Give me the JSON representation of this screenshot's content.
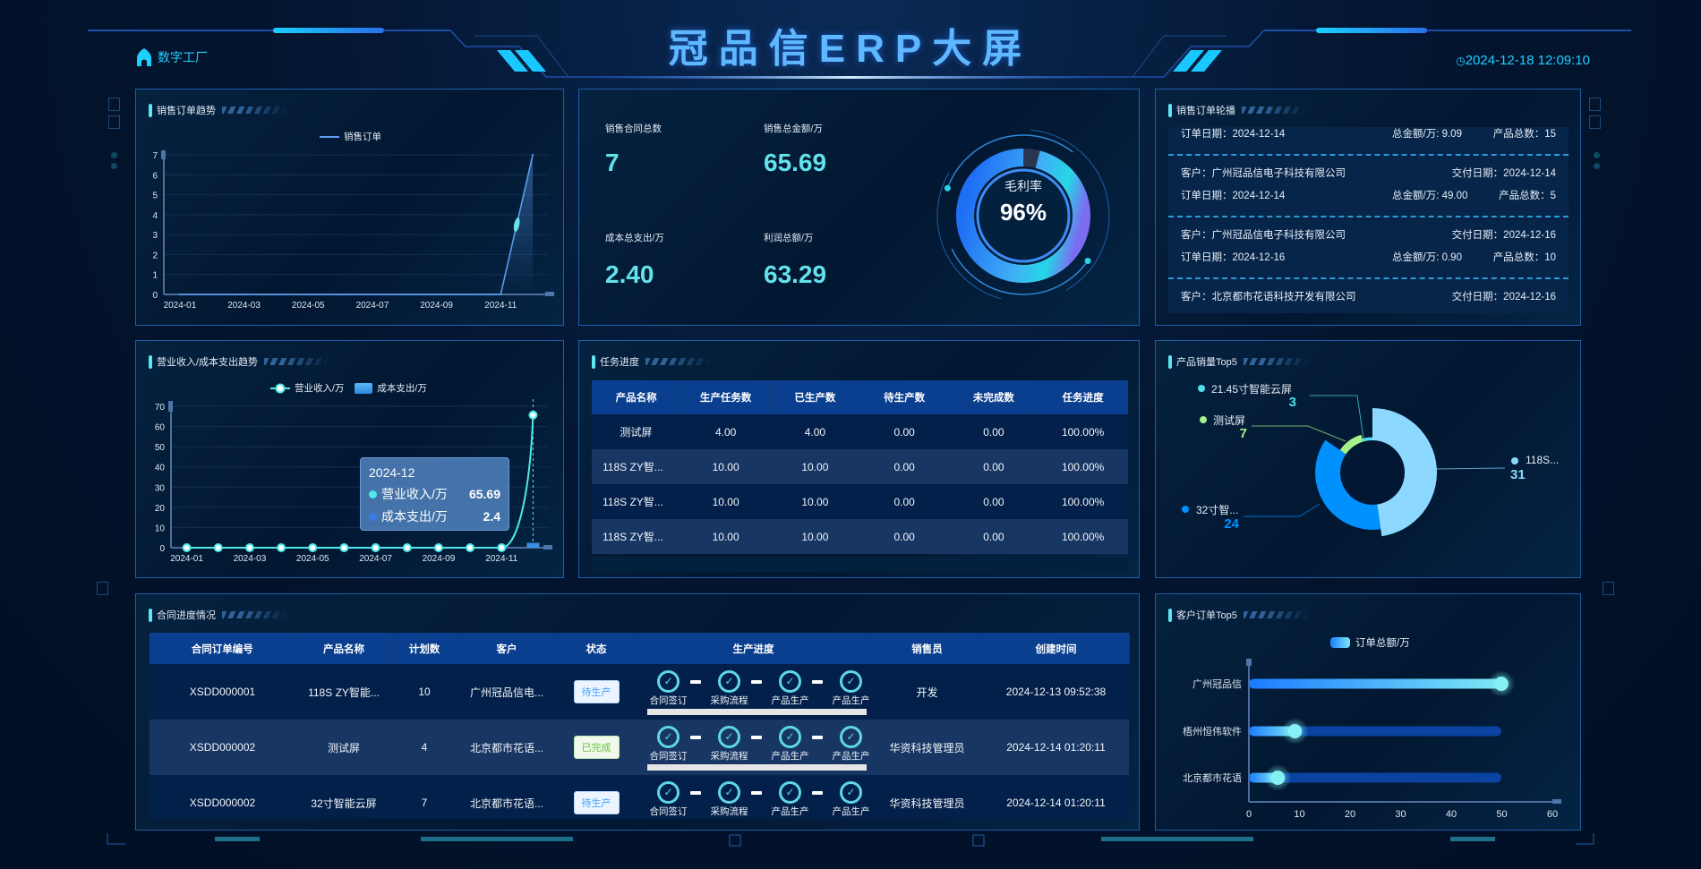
{
  "header": {
    "title": "冠品信ERP大屏",
    "home_label": "数字工厂",
    "home_icon": "home-icon",
    "clock_icon": "◷",
    "datetime": "2024-12-18 12:09:10"
  },
  "colors": {
    "accent": "#5ee6f0",
    "kpi": "#63e2ec",
    "panel_border": "#1d5ea8",
    "table_header": "#0a3f8f"
  },
  "kpis": [
    {
      "label": "销售合同总数",
      "value": "7"
    },
    {
      "label": "销售总金额/万",
      "value": "65.69"
    },
    {
      "label": "成本总支出/万",
      "value": "2.40"
    },
    {
      "label": "利润总额/万",
      "value": "63.29"
    }
  ],
  "gauge": {
    "label": "毛利率",
    "value": "96%",
    "percent": 96
  },
  "order_list": {
    "title": "销售订单轮播",
    "items": [
      {
        "order_date": "订单日期：2024-12-14",
        "amount": "总金额/万: 9.09",
        "count": "产品总数：15"
      },
      {
        "customer": "客户：广州冠品信电子科技有限公司",
        "delivery": "交付日期：2024-12-14",
        "order_date": "订单日期：2024-12-14",
        "amount": "总金额/万: 49.00",
        "count": "产品总数：5"
      },
      {
        "customer": "客户：广州冠品信电子科技有限公司",
        "delivery": "交付日期：2024-12-16",
        "order_date": "订单日期：2024-12-16",
        "amount": "总金额/万: 0.90",
        "count": "产品总数：10"
      },
      {
        "customer": "客户：北京都市花语科技开发有限公司",
        "delivery": "交付日期：2024-12-16"
      }
    ]
  },
  "task_table": {
    "title": "任务进度",
    "columns": [
      "产品名称",
      "生产任务数",
      "已生产数",
      "待生产数",
      "未完成数",
      "任务进度"
    ],
    "rows": [
      [
        "测试屏",
        "4.00",
        "4.00",
        "0.00",
        "0.00",
        "100.00%"
      ],
      [
        "118S ZY智...",
        "10.00",
        "10.00",
        "0.00",
        "0.00",
        "100.00%"
      ],
      [
        "118S ZY智...",
        "10.00",
        "10.00",
        "0.00",
        "0.00",
        "100.00%"
      ],
      [
        "118S ZY智...",
        "10.00",
        "10.00",
        "0.00",
        "0.00",
        "100.00%"
      ]
    ]
  },
  "contract_table": {
    "title": "合同进度情况",
    "columns": [
      "合同订单编号",
      "产品名称",
      "计划数",
      "客户",
      "状态",
      "生产进度",
      "销售员",
      "创建时间"
    ],
    "steps": [
      "合同签订",
      "采购流程",
      "产品生产",
      "产品生产"
    ],
    "rows": [
      {
        "id": "XSDD000001",
        "product": "118S ZY智能...",
        "plan": "10",
        "customer": "广州冠品信电...",
        "status": "待生产",
        "status_type": "pending",
        "progress": 100,
        "seller": "开发",
        "created": "2024-12-13 09:52:38"
      },
      {
        "id": "XSDD000002",
        "product": "测试屏",
        "plan": "4",
        "customer": "北京都市花语...",
        "status": "已完成",
        "status_type": "done",
        "progress": 100,
        "seller": "华资科技管理员",
        "created": "2024-12-14 01:20:11"
      },
      {
        "id": "XSDD000002",
        "product": "32寸智能云屏",
        "plan": "7",
        "customer": "北京都市花语...",
        "status": "待生产",
        "status_type": "pending",
        "progress": 100,
        "seller": "华资科技管理员",
        "created": "2024-12-14 01:20:11"
      }
    ]
  },
  "chart_data": [
    {
      "type": "line",
      "title": "销售订单趋势",
      "legend": [
        "销售订单"
      ],
      "categories": [
        "2024-01",
        "2024-02",
        "2024-03",
        "2024-04",
        "2024-05",
        "2024-06",
        "2024-07",
        "2024-08",
        "2024-09",
        "2024-10",
        "2024-11",
        "2024-12"
      ],
      "x_tick_labels": [
        "2024-01",
        "",
        "2024-03",
        "",
        "2024-05",
        "",
        "2024-07",
        "",
        "2024-09",
        "",
        "2024-11",
        ""
      ],
      "values": [
        0,
        0,
        0,
        0,
        0,
        0,
        0,
        0,
        0,
        0,
        0,
        7
      ],
      "yticks": [
        "0",
        "1",
        "2",
        "3",
        "4",
        "5",
        "6",
        "7"
      ],
      "ylim": [
        0,
        7
      ],
      "color": "#5b9cf0",
      "grid": true
    },
    {
      "type": "line+bar",
      "title": "营业收入/成本支出趋势",
      "categories": [
        "2024-01",
        "2024-02",
        "2024-03",
        "2024-04",
        "2024-05",
        "2024-06",
        "2024-07",
        "2024-08",
        "2024-09",
        "2024-10",
        "2024-11",
        "2024-12"
      ],
      "x_tick_labels": [
        "2024-01",
        "",
        "2024-03",
        "",
        "2024-05",
        "",
        "2024-07",
        "",
        "2024-09",
        "",
        "2024-11",
        ""
      ],
      "series": [
        {
          "name": "营业收入/万",
          "type": "line",
          "color": "#4ee8e8",
          "values": [
            0,
            0,
            0,
            0,
            0,
            0,
            0,
            0,
            0,
            0,
            0,
            65.69
          ]
        },
        {
          "name": "成本支出/万",
          "type": "bar",
          "color": "#3a8ee6",
          "values": [
            0,
            0,
            0,
            0,
            0,
            0,
            0,
            0,
            0,
            0,
            0,
            2.4
          ]
        }
      ],
      "yticks": [
        "0",
        "10",
        "20",
        "30",
        "40",
        "50",
        "60",
        "70"
      ],
      "ylim": [
        0,
        70
      ],
      "grid": true,
      "tooltip": {
        "category": "2024-12",
        "rows": [
          {
            "name": "营业收入/万",
            "value": "65.69",
            "color": "#4ee8e8"
          },
          {
            "name": "成本支出/万",
            "value": "2.4",
            "color": "#3a7ee6"
          }
        ]
      }
    },
    {
      "type": "pie",
      "title": "产品销量Top5",
      "labels": [
        "118S...",
        "32寸智...",
        "测试屏",
        "21.45寸智能云屏"
      ],
      "values": [
        31,
        24,
        7,
        3
      ],
      "value_labels": [
        "31",
        "24",
        "7",
        "3"
      ],
      "colors": [
        "#8dd8ff",
        "#0091ff",
        "#a6f08a",
        "#52e0f0"
      ]
    },
    {
      "type": "bar",
      "orientation": "horizontal",
      "title": "客户订单Top5",
      "legend": [
        "订单总额/万"
      ],
      "categories": [
        "广州冠品信",
        "梧州恒伟软件",
        "北京都市花语"
      ],
      "values": [
        49.9,
        9.09,
        5.7
      ],
      "xticks": [
        "0",
        "10",
        "20",
        "30",
        "40",
        "50",
        "60"
      ],
      "xlim": [
        0,
        60
      ]
    }
  ]
}
